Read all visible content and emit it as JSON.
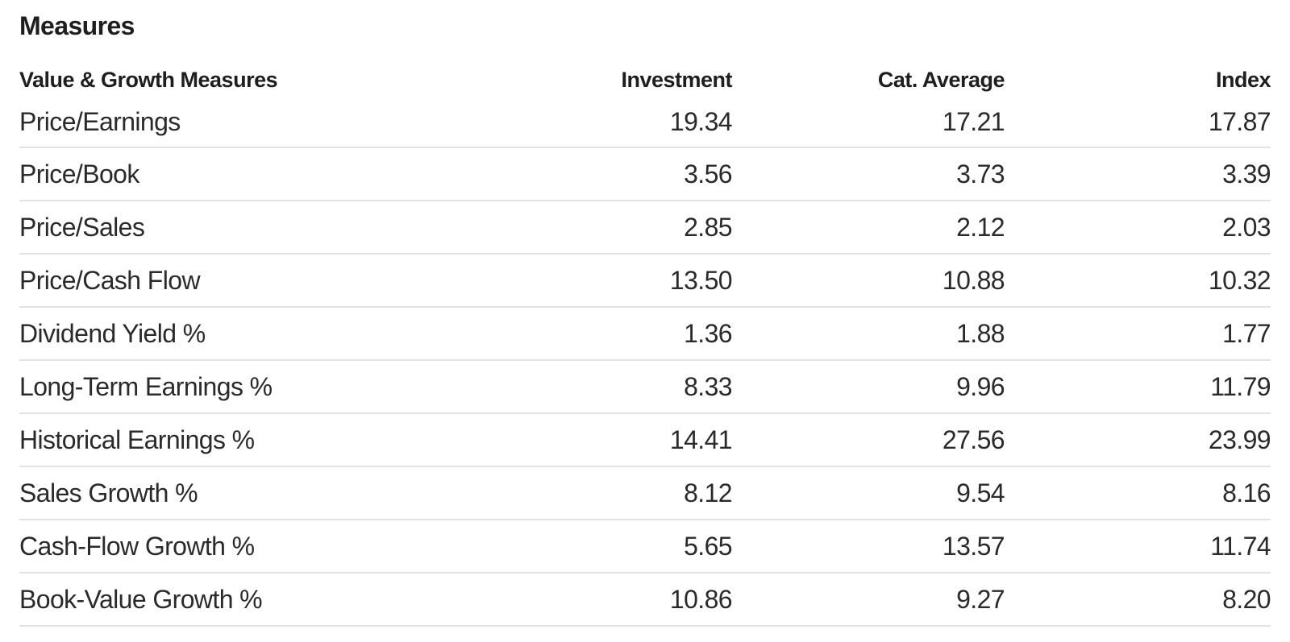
{
  "section": {
    "title": "Measures"
  },
  "table": {
    "headers": {
      "label": "Value & Growth Measures",
      "investment": "Investment",
      "cat_average": "Cat. Average",
      "index": "Index"
    },
    "rows": [
      {
        "label": "Price/Earnings",
        "investment": "19.34",
        "cat_average": "17.21",
        "index": "17.87"
      },
      {
        "label": "Price/Book",
        "investment": "3.56",
        "cat_average": "3.73",
        "index": "3.39"
      },
      {
        "label": "Price/Sales",
        "investment": "2.85",
        "cat_average": "2.12",
        "index": "2.03"
      },
      {
        "label": "Price/Cash Flow",
        "investment": "13.50",
        "cat_average": "10.88",
        "index": "10.32"
      },
      {
        "label": "Dividend Yield %",
        "investment": "1.36",
        "cat_average": "1.88",
        "index": "1.77"
      },
      {
        "label": "Long-Term Earnings %",
        "investment": "8.33",
        "cat_average": "9.96",
        "index": "11.79"
      },
      {
        "label": "Historical Earnings %",
        "investment": "14.41",
        "cat_average": "27.56",
        "index": "23.99"
      },
      {
        "label": "Sales Growth %",
        "investment": "8.12",
        "cat_average": "9.54",
        "index": "8.16"
      },
      {
        "label": "Cash-Flow Growth %",
        "investment": "5.65",
        "cat_average": "13.57",
        "index": "11.74"
      },
      {
        "label": "Book-Value Growth %",
        "investment": "10.86",
        "cat_average": "9.27",
        "index": "8.20"
      }
    ]
  },
  "colors": {
    "text": "#1e1e1e",
    "row_divider": "#e3e3e3",
    "background": "#ffffff"
  }
}
